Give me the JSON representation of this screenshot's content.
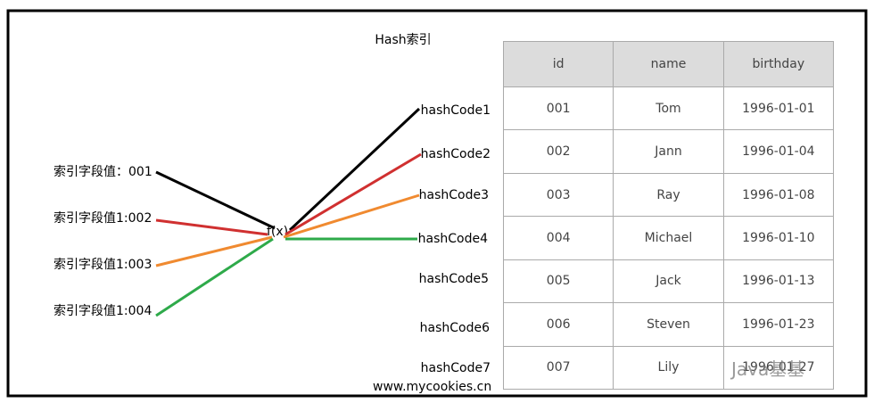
{
  "title": "Hash索引",
  "index_values": [
    "索引字段值：001",
    "索引字段值1:002",
    "索引字段值1:003",
    "索引字段值1:004"
  ],
  "function": "f(x)",
  "hash_codes": [
    "hashCode1",
    "hashCode2",
    "hashCode3",
    "hashCode4",
    "hashCode5",
    "hashCode6",
    "hashCode7"
  ],
  "table": {
    "header": [
      "id",
      "name",
      "birthday"
    ],
    "rows": [
      [
        "001",
        "Tom",
        "1996-01-01"
      ],
      [
        "002",
        "Jann",
        "1996-01-04"
      ],
      [
        "003",
        "Ray",
        "1996-01-08"
      ],
      [
        "004",
        "Michael",
        "1996-01-10"
      ],
      [
        "005",
        "Jack",
        "1996-01-13"
      ],
      [
        "006",
        "Steven",
        "1996-01-23"
      ],
      [
        "007",
        "Lily",
        "1996-01-27"
      ]
    ]
  },
  "footer": "www.mycookies.cn",
  "watermark": "Java基基"
}
